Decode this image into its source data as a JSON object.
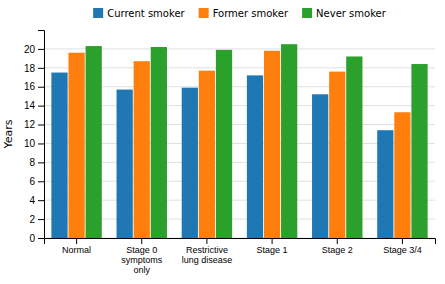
{
  "chart_data": {
    "type": "bar",
    "categories": [
      "Normal",
      "Stage 0\nsymptoms\nonly",
      "Restrictive\nlung disease",
      "Stage 1",
      "Stage 2",
      "Stage 3/4"
    ],
    "series": [
      {
        "name": "Current smoker",
        "values": [
          17.5,
          15.7,
          15.9,
          17.2,
          15.2,
          11.4
        ]
      },
      {
        "name": "Former smoker",
        "values": [
          19.6,
          18.7,
          17.7,
          19.8,
          17.6,
          13.3
        ]
      },
      {
        "name": "Never smoker",
        "values": [
          20.3,
          20.2,
          19.9,
          20.5,
          19.2,
          18.4
        ]
      }
    ],
    "ylabel": "Years",
    "ylim": [
      0,
      22
    ],
    "yticks": [
      0,
      2,
      4,
      6,
      8,
      10,
      12,
      14,
      16,
      18,
      20
    ],
    "grid": true,
    "legend": "top"
  }
}
